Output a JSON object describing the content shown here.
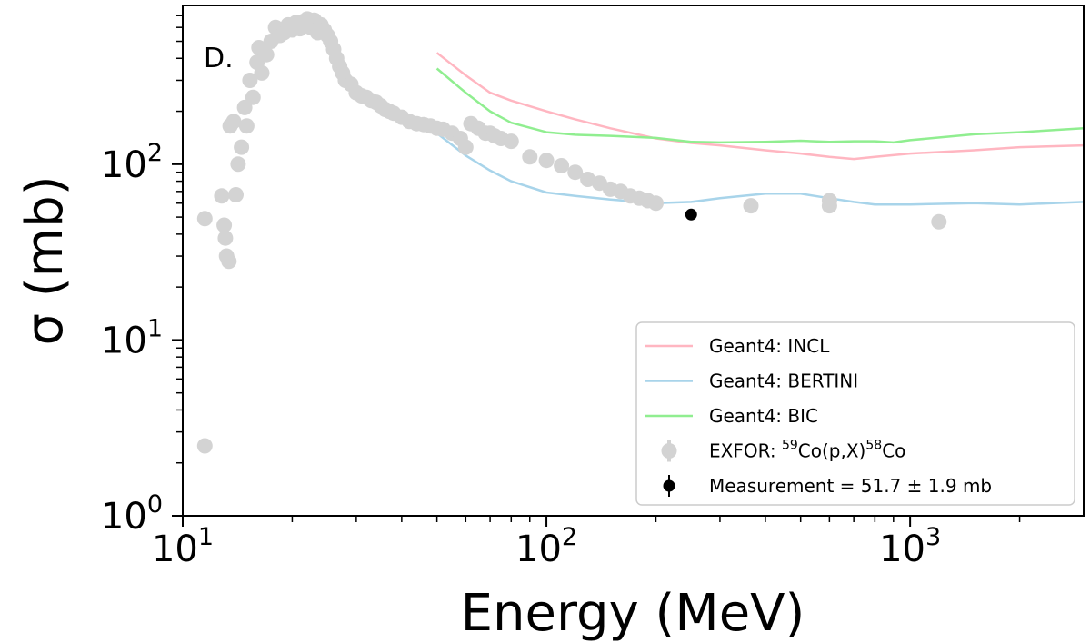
{
  "chart_data": {
    "type": "scatter",
    "panel_label": "D.",
    "xlabel": "Energy (MeV)",
    "ylabel": "σ (mb)",
    "xscale": "log",
    "yscale": "log",
    "xlim": [
      10,
      3000
    ],
    "ylim": [
      1,
      800
    ],
    "x_ticks": [
      {
        "value": 10,
        "base": "10",
        "exp": "1"
      },
      {
        "value": 100,
        "base": "10",
        "exp": "2"
      },
      {
        "value": 1000,
        "base": "10",
        "exp": "3"
      }
    ],
    "y_ticks": [
      {
        "value": 1,
        "base": "10",
        "exp": "0"
      },
      {
        "value": 10,
        "base": "10",
        "exp": "1"
      },
      {
        "value": 100,
        "base": "10",
        "exp": "2"
      }
    ],
    "grid": false,
    "legend_position": "lower-right",
    "series": [
      {
        "name": "Geant4: INCL",
        "kind": "line",
        "color": "#ffb6c1",
        "x": [
          50,
          60,
          70,
          80,
          100,
          120,
          150,
          200,
          250,
          300,
          400,
          500,
          600,
          700,
          800,
          1000,
          1500,
          2000,
          3000
        ],
        "y": [
          430,
          320,
          255,
          230,
          200,
          180,
          160,
          140,
          132,
          128,
          120,
          115,
          110,
          107,
          110,
          115,
          120,
          125,
          128
        ]
      },
      {
        "name": "Geant4: BERTINI",
        "kind": "line",
        "color": "#a8d4ea",
        "x": [
          50,
          60,
          70,
          80,
          100,
          120,
          150,
          200,
          250,
          300,
          400,
          500,
          600,
          700,
          800,
          1000,
          1500,
          2000,
          3000
        ],
        "y": [
          150,
          112,
          92,
          80,
          69,
          66,
          63,
          60,
          61,
          64,
          68,
          68,
          64,
          61,
          59,
          59,
          60,
          59,
          61
        ]
      },
      {
        "name": "Geant4: BIC",
        "kind": "line",
        "color": "#90ee90",
        "x": [
          50,
          60,
          70,
          80,
          100,
          120,
          150,
          200,
          250,
          300,
          400,
          500,
          600,
          700,
          800,
          900,
          1000,
          1500,
          2000,
          3000
        ],
        "y": [
          350,
          255,
          200,
          172,
          152,
          147,
          145,
          141,
          134,
          133,
          134,
          136,
          134,
          135,
          135,
          133,
          137,
          148,
          152,
          160
        ]
      },
      {
        "name": "EXFOR: ⁵⁹Co(p,X)⁵⁸Co",
        "name_parts": [
          {
            "text": "EXFOR: ",
            "sup": false
          },
          {
            "text": "59",
            "sup": true
          },
          {
            "text": "Co(p,X)",
            "sup": false
          },
          {
            "text": "58",
            "sup": true
          },
          {
            "text": "Co",
            "sup": false
          }
        ],
        "kind": "points",
        "color": "#d3d3d3",
        "x": [
          11.5,
          11.5,
          12.8,
          13.0,
          13.1,
          13.2,
          13.4,
          13.5,
          13.8,
          14.0,
          14.2,
          14.5,
          14.8,
          15.0,
          15.3,
          15.6,
          16.0,
          16.2,
          16.5,
          17.0,
          17.5,
          18.0,
          18.5,
          19.0,
          19.5,
          20.0,
          20.5,
          21.0,
          21.5,
          22.0,
          22.5,
          23.0,
          23.5,
          24.0,
          24.5,
          25.0,
          25.5,
          26.0,
          26.5,
          27.0,
          27.5,
          28.0,
          29.0,
          30.0,
          31.0,
          32.0,
          33.0,
          34.0,
          35.0,
          36.0,
          37.0,
          38.0,
          40.0,
          42.0,
          44.0,
          46.0,
          48.0,
          50.0,
          52.0,
          55.0,
          58.0,
          60.0,
          62.0,
          65.0,
          68.0,
          70.0,
          72.0,
          75.0,
          80.0,
          90.0,
          100.0,
          110.0,
          120.0,
          130.0,
          140.0,
          150.0,
          160.0,
          170.0,
          180.0,
          190.0,
          200.0,
          365.0,
          600.0,
          600.0,
          1200.0
        ],
        "y": [
          49,
          2.5,
          66,
          45,
          38,
          30,
          28,
          165,
          175,
          67,
          100,
          125,
          210,
          165,
          300,
          240,
          380,
          460,
          330,
          420,
          500,
          600,
          540,
          560,
          620,
          580,
          640,
          590,
          650,
          670,
          600,
          660,
          560,
          620,
          580,
          540,
          500,
          450,
          400,
          360,
          330,
          300,
          285,
          255,
          245,
          240,
          230,
          225,
          215,
          205,
          200,
          195,
          185,
          175,
          170,
          168,
          165,
          160,
          158,
          150,
          140,
          125,
          170,
          160,
          150,
          150,
          145,
          140,
          135,
          110,
          105,
          98,
          90,
          82,
          78,
          72,
          70,
          66,
          64,
          62,
          60,
          58,
          62,
          58,
          47
        ]
      },
      {
        "name": "Measurement = 51.7 ± 1.9 mb",
        "kind": "errorbar",
        "color": "#000000",
        "x": [
          250
        ],
        "y": [
          51.7
        ],
        "yerr": [
          1.9
        ]
      }
    ]
  }
}
